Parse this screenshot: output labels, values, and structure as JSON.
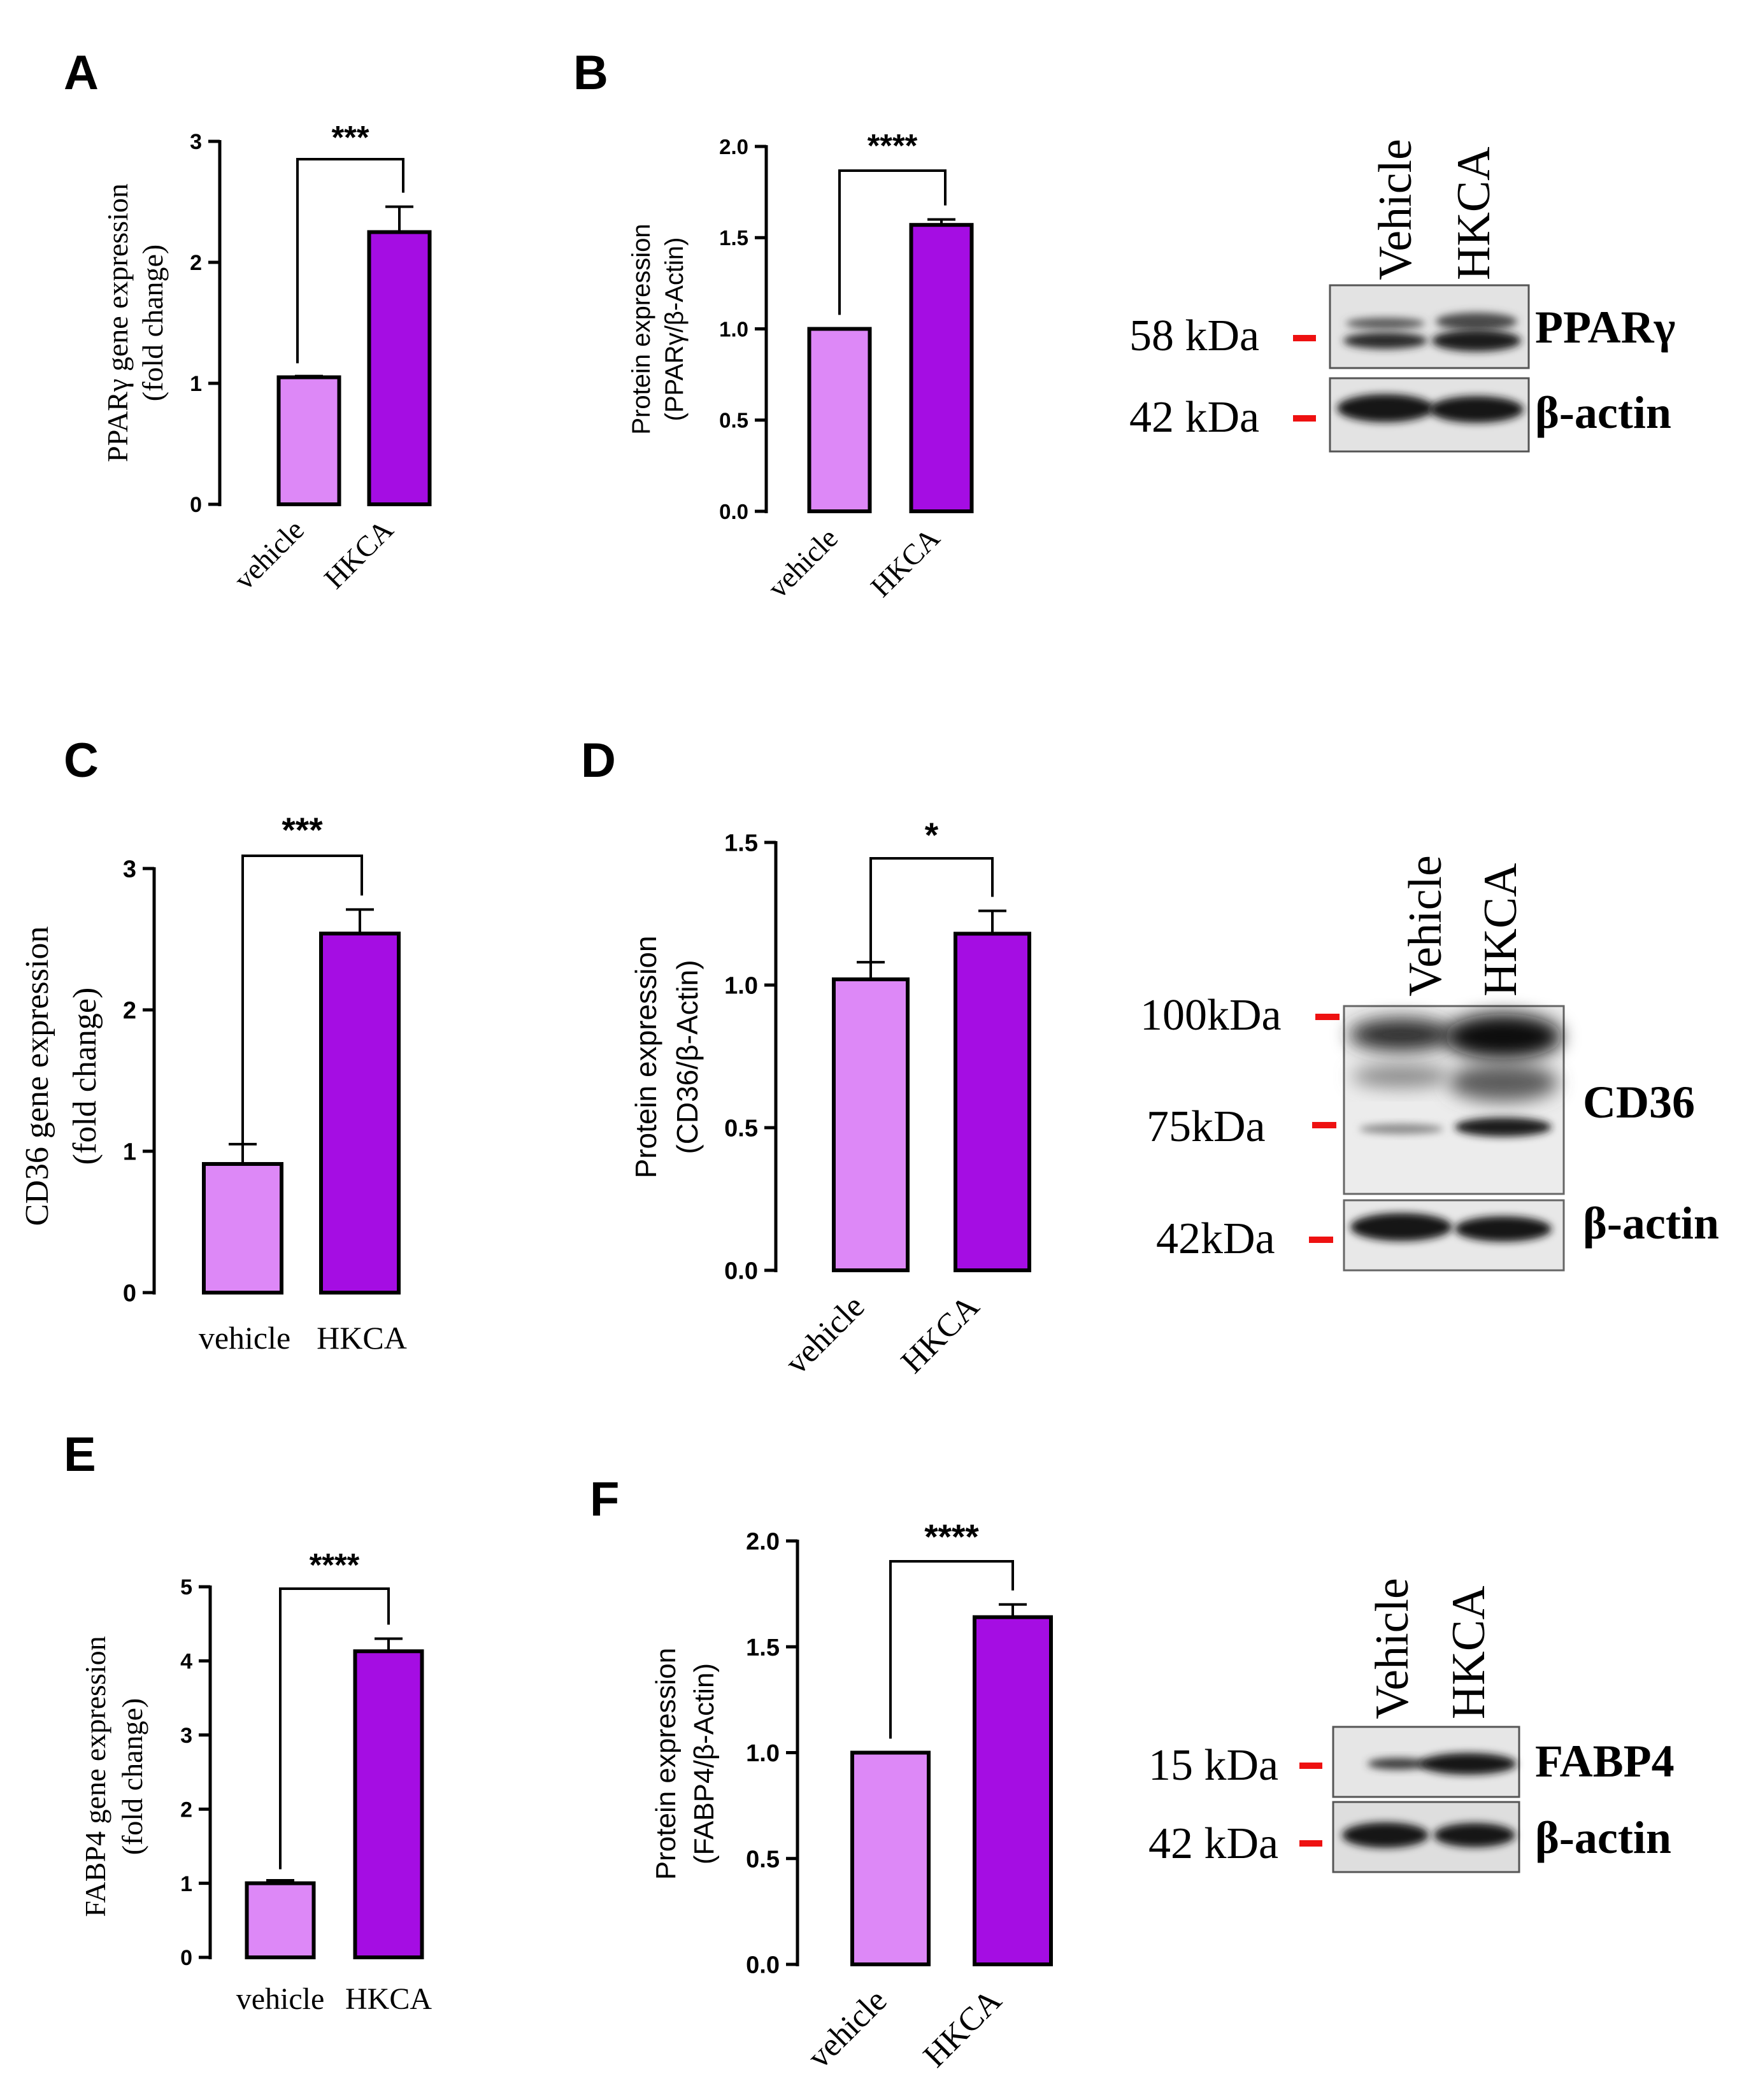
{
  "colors": {
    "vehicle": "#dd88f7",
    "hkca": "#a50de3",
    "axis": "#000000",
    "marker": "#ee1111",
    "blot_bg": "#e6e6e6",
    "band": "#151515"
  },
  "chart_data": [
    {
      "panel": "A",
      "type": "bar",
      "ylabel_lines": [
        "PPARγ gene expression",
        "(fold change)"
      ],
      "categories": [
        "vehicle",
        "HKCA"
      ],
      "values": [
        1.05,
        2.25
      ],
      "errors": [
        0.01,
        0.21
      ],
      "ylim": [
        0,
        3
      ],
      "yticks": [
        "0",
        "1",
        "2",
        "3"
      ],
      "significance": "***"
    },
    {
      "panel": "B",
      "type": "bar",
      "ylabel_lines": [
        "Protein expression",
        "(PPARγ/β-Actin)"
      ],
      "categories": [
        "vehicle",
        "HKCA"
      ],
      "values": [
        1.0,
        1.57
      ],
      "errors": [
        0.0,
        0.03
      ],
      "ylim": [
        0,
        2.0
      ],
      "yticks": [
        "0.0",
        "0.5",
        "1.0",
        "1.5",
        "2.0"
      ],
      "significance": "****"
    },
    {
      "panel": "C",
      "type": "bar",
      "ylabel_lines": [
        "CD36 gene expression",
        "(fold change)"
      ],
      "categories": [
        "vehicle",
        "HKCA"
      ],
      "values": [
        0.91,
        2.54
      ],
      "errors": [
        0.14,
        0.17
      ],
      "ylim": [
        0,
        3
      ],
      "yticks": [
        "0",
        "1",
        "2",
        "3"
      ],
      "significance": "***"
    },
    {
      "panel": "D",
      "type": "bar",
      "ylabel_lines": [
        "Protein expression",
        "(CD36/β-Actin)"
      ],
      "categories": [
        "vehicle",
        "HKCA"
      ],
      "values": [
        1.02,
        1.18
      ],
      "errors": [
        0.06,
        0.08
      ],
      "ylim": [
        0,
        1.5
      ],
      "yticks": [
        "0.0",
        "0.5",
        "1.0",
        "1.5"
      ],
      "significance": "*"
    },
    {
      "panel": "E",
      "type": "bar",
      "ylabel_lines": [
        "FABP4 gene expression",
        "(fold change)"
      ],
      "categories": [
        "vehicle",
        "HKCA"
      ],
      "values": [
        1.0,
        4.13
      ],
      "errors": [
        0.04,
        0.17
      ],
      "ylim": [
        0,
        5
      ],
      "yticks": [
        "0",
        "1",
        "2",
        "3",
        "4",
        "5"
      ],
      "significance": "****"
    },
    {
      "panel": "F",
      "type": "bar",
      "ylabel_lines": [
        "Protein expression",
        "(FABP4/β-Actin)"
      ],
      "categories": [
        "vehicle",
        "HKCA"
      ],
      "values": [
        1.0,
        1.64
      ],
      "errors": [
        0.0,
        0.06
      ],
      "ylim": [
        0,
        2.0
      ],
      "yticks": [
        "0.0",
        "0.5",
        "1.0",
        "1.5",
        "2.0"
      ],
      "significance": "****"
    }
  ],
  "blots": [
    {
      "id": "blot-pparg",
      "lanes": [
        "Vehicle",
        "HKCA"
      ],
      "rows": [
        {
          "marker": "58 kDa",
          "protein": "PPARγ"
        },
        {
          "marker": "42 kDa",
          "protein": "β-actin"
        }
      ]
    },
    {
      "id": "blot-cd36",
      "lanes": [
        "Vehicle",
        "HKCA"
      ],
      "markers_top": [
        "100kDa",
        "75kDa"
      ],
      "rows": [
        {
          "marker": "",
          "protein": "CD36"
        },
        {
          "marker": "42kDa",
          "protein": "β-actin"
        }
      ]
    },
    {
      "id": "blot-fabp4",
      "lanes": [
        "Vehicle",
        "HKCA"
      ],
      "rows": [
        {
          "marker": "15 kDa",
          "protein": "FABP4"
        },
        {
          "marker": "42 kDa",
          "protein": "β-actin"
        }
      ]
    }
  ]
}
